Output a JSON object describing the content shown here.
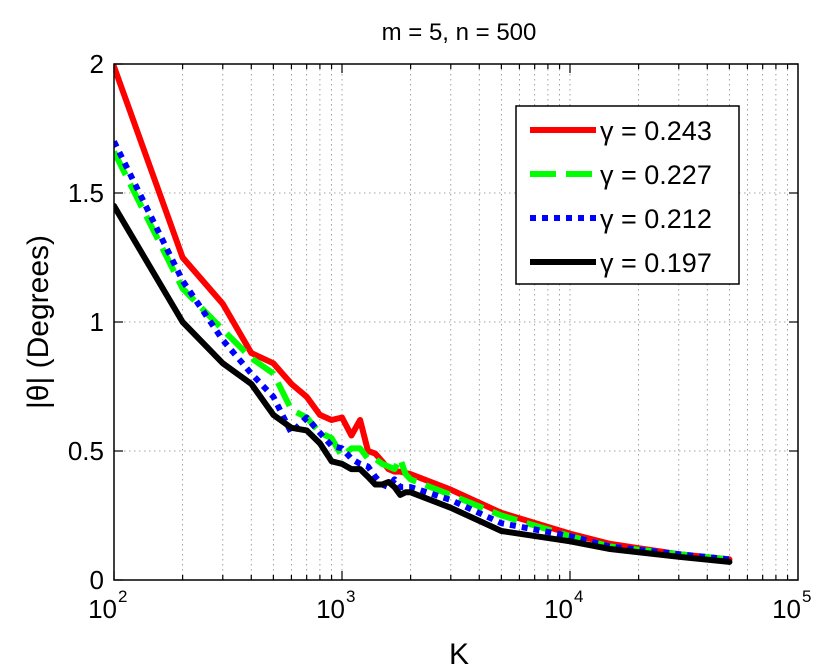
{
  "chart_data": {
    "type": "line",
    "title": "m = 5, n = 500",
    "xlabel": "K",
    "ylabel": "|θ| (Degrees)",
    "x_scale": "log",
    "xlim": [
      100,
      100000
    ],
    "ylim": [
      0,
      2
    ],
    "grid": true,
    "legend_position": "top-right",
    "x_ticks": [
      {
        "base": "10",
        "exp": "2"
      },
      {
        "base": "10",
        "exp": "3"
      },
      {
        "base": "10",
        "exp": "4"
      },
      {
        "base": "10",
        "exp": "5"
      }
    ],
    "y_ticks": [
      "0",
      "0.5",
      "1",
      "1.5",
      "2"
    ],
    "series": [
      {
        "name": "γ = 0.243",
        "color": "#ff0000",
        "style": "solid",
        "points": [
          [
            100,
            1.99
          ],
          [
            200,
            1.25
          ],
          [
            300,
            1.07
          ],
          [
            400,
            0.88
          ],
          [
            500,
            0.84
          ],
          [
            600,
            0.76
          ],
          [
            700,
            0.71
          ],
          [
            800,
            0.64
          ],
          [
            900,
            0.62
          ],
          [
            1000,
            0.63
          ],
          [
            1100,
            0.56
          ],
          [
            1200,
            0.62
          ],
          [
            1300,
            0.5
          ],
          [
            1400,
            0.49
          ],
          [
            1500,
            0.46
          ],
          [
            1600,
            0.43
          ],
          [
            1700,
            0.42
          ],
          [
            1800,
            0.42
          ],
          [
            2000,
            0.41
          ],
          [
            3000,
            0.35
          ],
          [
            5000,
            0.26
          ],
          [
            10000,
            0.18
          ],
          [
            15000,
            0.14
          ],
          [
            30000,
            0.1
          ],
          [
            50000,
            0.08
          ]
        ]
      },
      {
        "name": "γ = 0.227",
        "color": "#00ff00",
        "style": "dashed",
        "points": [
          [
            100,
            1.66
          ],
          [
            200,
            1.13
          ],
          [
            300,
            0.97
          ],
          [
            400,
            0.86
          ],
          [
            500,
            0.8
          ],
          [
            600,
            0.66
          ],
          [
            700,
            0.63
          ],
          [
            800,
            0.57
          ],
          [
            900,
            0.55
          ],
          [
            1000,
            0.48
          ],
          [
            1100,
            0.51
          ],
          [
            1200,
            0.51
          ],
          [
            1300,
            0.47
          ],
          [
            1400,
            0.47
          ],
          [
            1500,
            0.45
          ],
          [
            1600,
            0.44
          ],
          [
            1700,
            0.43
          ],
          [
            1800,
            0.47
          ],
          [
            1900,
            0.41
          ],
          [
            2000,
            0.39
          ],
          [
            3000,
            0.33
          ],
          [
            5000,
            0.25
          ],
          [
            10000,
            0.17
          ],
          [
            15000,
            0.13
          ],
          [
            30000,
            0.1
          ],
          [
            50000,
            0.08
          ]
        ]
      },
      {
        "name": "γ = 0.212",
        "color": "#0000ff",
        "style": "dotted",
        "points": [
          [
            100,
            1.7
          ],
          [
            200,
            1.16
          ],
          [
            300,
            0.93
          ],
          [
            400,
            0.8
          ],
          [
            500,
            0.71
          ],
          [
            600,
            0.57
          ],
          [
            700,
            0.63
          ],
          [
            800,
            0.57
          ],
          [
            900,
            0.52
          ],
          [
            1000,
            0.51
          ],
          [
            1100,
            0.47
          ],
          [
            1200,
            0.45
          ],
          [
            1300,
            0.44
          ],
          [
            1400,
            0.4
          ],
          [
            1500,
            0.37
          ],
          [
            1600,
            0.36
          ],
          [
            1700,
            0.39
          ],
          [
            1800,
            0.36
          ],
          [
            2000,
            0.36
          ],
          [
            3000,
            0.31
          ],
          [
            5000,
            0.22
          ],
          [
            10000,
            0.17
          ],
          [
            15000,
            0.13
          ],
          [
            30000,
            0.1
          ],
          [
            50000,
            0.08
          ]
        ]
      },
      {
        "name": "γ = 0.197",
        "color": "#000000",
        "style": "solid",
        "points": [
          [
            100,
            1.45
          ],
          [
            200,
            1.0
          ],
          [
            300,
            0.84
          ],
          [
            400,
            0.76
          ],
          [
            500,
            0.64
          ],
          [
            600,
            0.59
          ],
          [
            700,
            0.58
          ],
          [
            800,
            0.53
          ],
          [
            900,
            0.46
          ],
          [
            1000,
            0.45
          ],
          [
            1100,
            0.43
          ],
          [
            1200,
            0.43
          ],
          [
            1300,
            0.4
          ],
          [
            1400,
            0.37
          ],
          [
            1500,
            0.37
          ],
          [
            1600,
            0.38
          ],
          [
            1700,
            0.36
          ],
          [
            1800,
            0.33
          ],
          [
            1900,
            0.34
          ],
          [
            2000,
            0.34
          ],
          [
            3000,
            0.28
          ],
          [
            5000,
            0.19
          ],
          [
            10000,
            0.15
          ],
          [
            15000,
            0.12
          ],
          [
            30000,
            0.09
          ],
          [
            50000,
            0.07
          ]
        ]
      }
    ]
  }
}
